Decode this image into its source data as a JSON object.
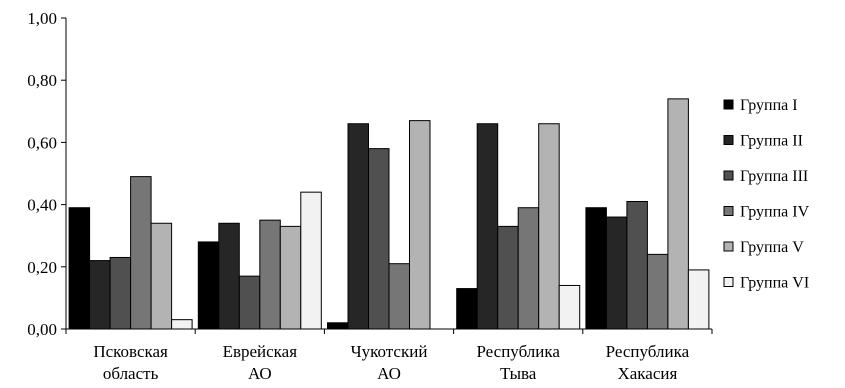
{
  "chart_data": {
    "type": "bar",
    "categories": [
      [
        "Псковская",
        "область"
      ],
      [
        "Еврейская",
        "АО"
      ],
      [
        "Чукотский",
        "АО"
      ],
      [
        "Республика",
        "Тыва"
      ],
      [
        "Республика",
        "Хакасия"
      ]
    ],
    "series": [
      {
        "name": "Группа I",
        "color": "#000000",
        "values": [
          0.39,
          0.28,
          0.02,
          0.13,
          0.39
        ]
      },
      {
        "name": "Группа II",
        "color": "#262626",
        "values": [
          0.22,
          0.34,
          0.66,
          0.66,
          0.36
        ]
      },
      {
        "name": "Группа III",
        "color": "#505050",
        "values": [
          0.23,
          0.17,
          0.58,
          0.33,
          0.41
        ]
      },
      {
        "name": "Группа IV",
        "color": "#767676",
        "values": [
          0.49,
          0.35,
          0.21,
          0.39,
          0.24
        ]
      },
      {
        "name": "Группа V",
        "color": "#b3b3b3",
        "values": [
          0.34,
          0.33,
          0.67,
          0.66,
          0.74
        ]
      },
      {
        "name": "Группа VI",
        "color": "#f2f2f2",
        "values": [
          0.03,
          0.44,
          0.0,
          0.14,
          0.19
        ]
      }
    ],
    "y_ticks": [
      "0,00",
      "0,20",
      "0,40",
      "0,60",
      "0,80",
      "1,00"
    ],
    "ylim": [
      0,
      1
    ],
    "legend_position": "right",
    "grid": false
  }
}
